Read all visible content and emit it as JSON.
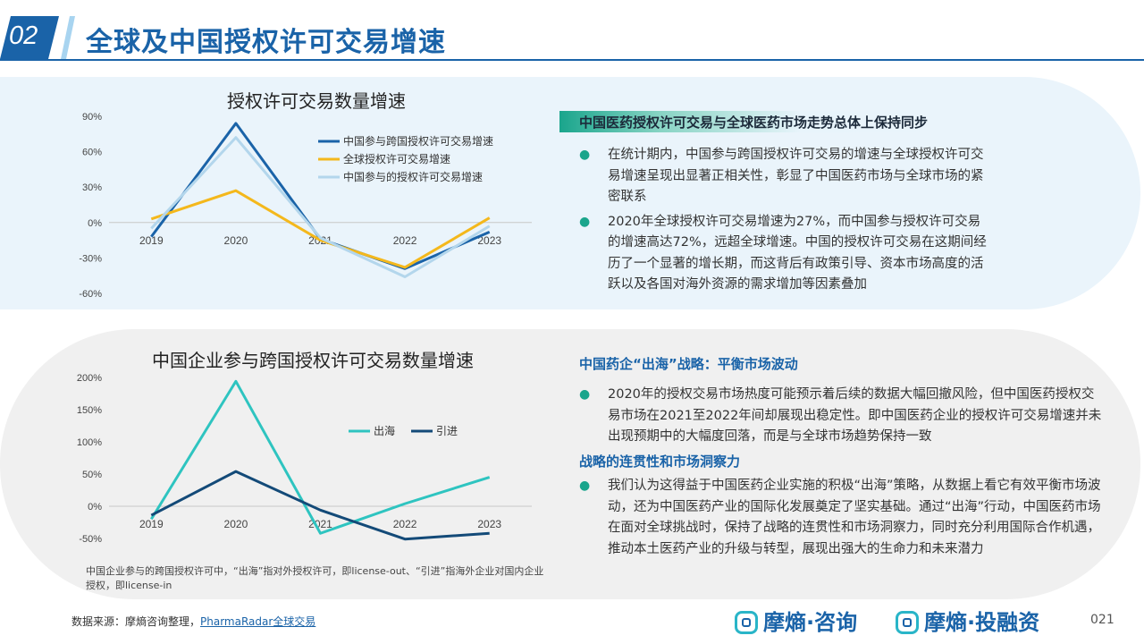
{
  "header": {
    "number": "02",
    "title": "全球及中国授权许可交易增速"
  },
  "chart_data": [
    {
      "type": "line",
      "title": "授权许可交易数量增速",
      "x": [
        "2019",
        "2020",
        "2021",
        "2022",
        "2023"
      ],
      "yticks": [
        "90%",
        "60%",
        "30%",
        "0%",
        "-30%",
        "-60%"
      ],
      "ylim": [
        -60,
        90
      ],
      "grid": false,
      "legend_position": "top-right",
      "series": [
        {
          "name": "中国参与跨国授权许可交易增速",
          "color": "#1a63a8",
          "values": [
            -12,
            84,
            -14,
            -39,
            -8
          ]
        },
        {
          "name": "全球授权许可交易增速",
          "color": "#f4b81c",
          "values": [
            3,
            27,
            -15,
            -38,
            4
          ]
        },
        {
          "name": "中国参与的授权许可交易增速",
          "color": "#b3d6ec",
          "values": [
            -5,
            72,
            -13,
            -46,
            -3
          ]
        }
      ]
    },
    {
      "type": "line",
      "title": "中国企业参与跨国授权许可交易数量增速",
      "x": [
        "2019",
        "2020",
        "2021",
        "2022",
        "2023"
      ],
      "yticks": [
        "200%",
        "150%",
        "100%",
        "50%",
        "0%",
        "-50%"
      ],
      "ylim": [
        -50,
        200
      ],
      "grid": false,
      "legend_position": "top-right",
      "series": [
        {
          "name": "出海",
          "color": "#2ec4c0",
          "values": [
            -20,
            194,
            -42,
            4,
            45
          ]
        },
        {
          "name": "引进",
          "color": "#134a78",
          "values": [
            -14,
            54,
            -6,
            -51,
            -42
          ]
        }
      ]
    }
  ],
  "section1": {
    "heading": "中国医药授权许可交易与全球医药市场走势总体上保持同步",
    "bullets": [
      "在统计期内，中国参与跨国授权许可交易的增速与全球授权许可交易增速呈现出显著正相关性，彰显了中国医药市场与全球市场的紧密联系",
      "2020年全球授权许可交易增速为27%，而中国参与授权许可交易的增速高达72%，远超全球增速。中国的授权许可交易在这期间经历了一个显著的增长期，而这背后有政策引导、资本市场高度的活跃以及各国对海外资源的需求增加等因素叠加"
    ]
  },
  "section2": {
    "heading": "中国药企“出海”战略：平衡市场波动",
    "bullets": [
      "2020年的授权交易市场热度可能预示着后续的数据大幅回撤风险，但中国医药授权交易市场在2021至2022年间却展现出稳定性。即中国医药企业的授权许可交易增速并未出现预期中的大幅度回落，而是与全球市场趋势保持一致"
    ]
  },
  "section3": {
    "heading": "战略的连贯性和市场洞察力",
    "bullets": [
      "我们认为这得益于中国医药企业实施的积极“出海”策略，从数据上看它有效平衡市场波动，还为中国医药产业的国际化发展奠定了坚实基础。通过“出海”行动，中国医药市场在面对全球挑战时，保持了战略的连贯性和市场洞察力，同时充分利用国际合作机遇，推动本土医药产业的升级与转型，展现出强大的生命力和未来潜力"
    ]
  },
  "note": "中国企业参与的跨国授权许可中，“出海”指对外授权许可，即license-out、“引进”指海外企业对国内企业授权，即license-in",
  "source": {
    "label": "数据来源：摩熵咨询整理，",
    "link": "PharmaRadar全球交易"
  },
  "logos": [
    "摩熵·咨询",
    "摩熵·投融资"
  ],
  "page_number": "021",
  "colors": {
    "brand": "#1a63a8",
    "accent": "#1aa58c"
  }
}
